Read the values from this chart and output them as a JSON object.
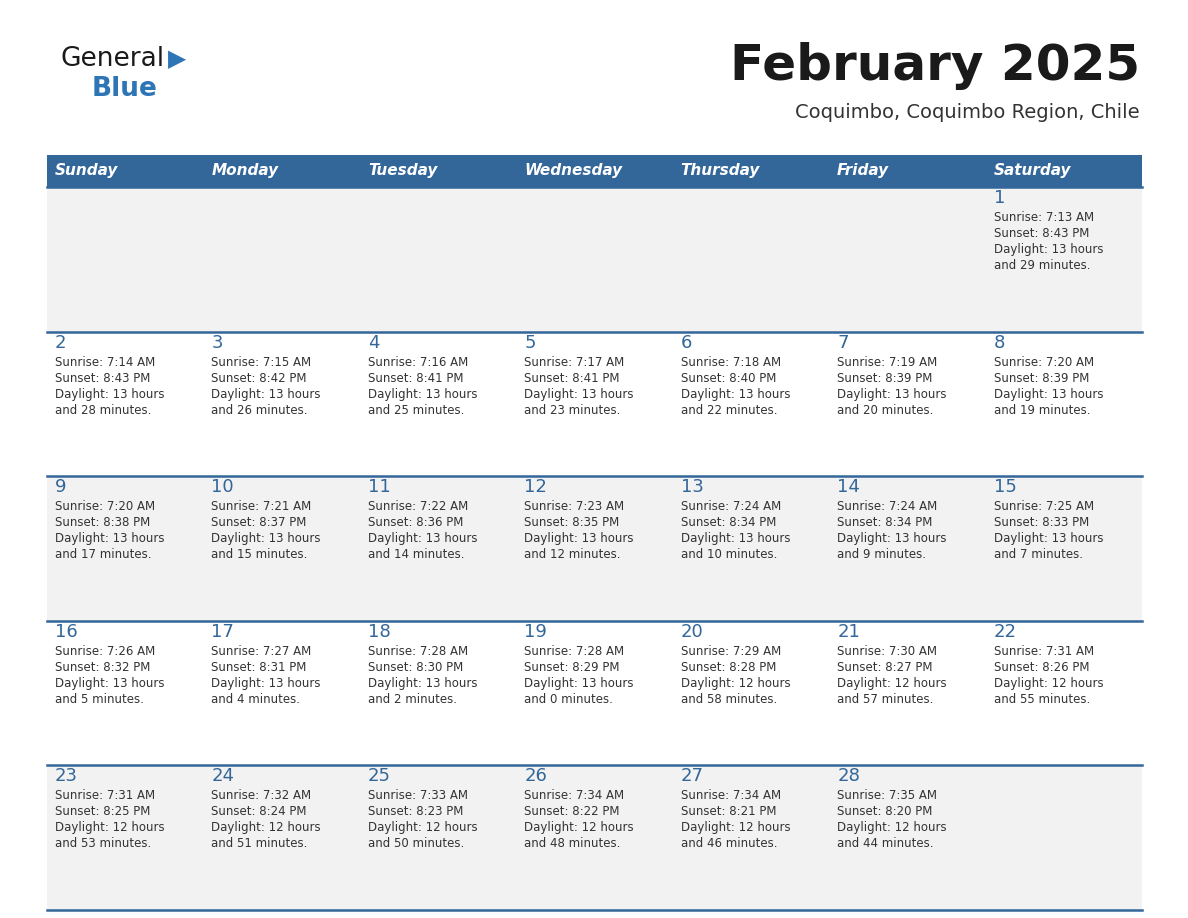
{
  "title": "February 2025",
  "subtitle": "Coquimbo, Coquimbo Region, Chile",
  "header_bg": "#336699",
  "header_text_color": "#FFFFFF",
  "cell_bg_odd": "#F2F2F2",
  "cell_bg_even": "#FFFFFF",
  "day_number_color": "#336699",
  "text_color": "#333333",
  "line_color": "#336699",
  "days_of_week": [
    "Sunday",
    "Monday",
    "Tuesday",
    "Wednesday",
    "Thursday",
    "Friday",
    "Saturday"
  ],
  "weeks": [
    [
      {
        "day": null,
        "sunrise": null,
        "sunset": null,
        "daylight_line1": null,
        "daylight_line2": null
      },
      {
        "day": null,
        "sunrise": null,
        "sunset": null,
        "daylight_line1": null,
        "daylight_line2": null
      },
      {
        "day": null,
        "sunrise": null,
        "sunset": null,
        "daylight_line1": null,
        "daylight_line2": null
      },
      {
        "day": null,
        "sunrise": null,
        "sunset": null,
        "daylight_line1": null,
        "daylight_line2": null
      },
      {
        "day": null,
        "sunrise": null,
        "sunset": null,
        "daylight_line1": null,
        "daylight_line2": null
      },
      {
        "day": null,
        "sunrise": null,
        "sunset": null,
        "daylight_line1": null,
        "daylight_line2": null
      },
      {
        "day": "1",
        "sunrise": "Sunrise: 7:13 AM",
        "sunset": "Sunset: 8:43 PM",
        "daylight_line1": "Daylight: 13 hours",
        "daylight_line2": "and 29 minutes."
      }
    ],
    [
      {
        "day": "2",
        "sunrise": "Sunrise: 7:14 AM",
        "sunset": "Sunset: 8:43 PM",
        "daylight_line1": "Daylight: 13 hours",
        "daylight_line2": "and 28 minutes."
      },
      {
        "day": "3",
        "sunrise": "Sunrise: 7:15 AM",
        "sunset": "Sunset: 8:42 PM",
        "daylight_line1": "Daylight: 13 hours",
        "daylight_line2": "and 26 minutes."
      },
      {
        "day": "4",
        "sunrise": "Sunrise: 7:16 AM",
        "sunset": "Sunset: 8:41 PM",
        "daylight_line1": "Daylight: 13 hours",
        "daylight_line2": "and 25 minutes."
      },
      {
        "day": "5",
        "sunrise": "Sunrise: 7:17 AM",
        "sunset": "Sunset: 8:41 PM",
        "daylight_line1": "Daylight: 13 hours",
        "daylight_line2": "and 23 minutes."
      },
      {
        "day": "6",
        "sunrise": "Sunrise: 7:18 AM",
        "sunset": "Sunset: 8:40 PM",
        "daylight_line1": "Daylight: 13 hours",
        "daylight_line2": "and 22 minutes."
      },
      {
        "day": "7",
        "sunrise": "Sunrise: 7:19 AM",
        "sunset": "Sunset: 8:39 PM",
        "daylight_line1": "Daylight: 13 hours",
        "daylight_line2": "and 20 minutes."
      },
      {
        "day": "8",
        "sunrise": "Sunrise: 7:20 AM",
        "sunset": "Sunset: 8:39 PM",
        "daylight_line1": "Daylight: 13 hours",
        "daylight_line2": "and 19 minutes."
      }
    ],
    [
      {
        "day": "9",
        "sunrise": "Sunrise: 7:20 AM",
        "sunset": "Sunset: 8:38 PM",
        "daylight_line1": "Daylight: 13 hours",
        "daylight_line2": "and 17 minutes."
      },
      {
        "day": "10",
        "sunrise": "Sunrise: 7:21 AM",
        "sunset": "Sunset: 8:37 PM",
        "daylight_line1": "Daylight: 13 hours",
        "daylight_line2": "and 15 minutes."
      },
      {
        "day": "11",
        "sunrise": "Sunrise: 7:22 AM",
        "sunset": "Sunset: 8:36 PM",
        "daylight_line1": "Daylight: 13 hours",
        "daylight_line2": "and 14 minutes."
      },
      {
        "day": "12",
        "sunrise": "Sunrise: 7:23 AM",
        "sunset": "Sunset: 8:35 PM",
        "daylight_line1": "Daylight: 13 hours",
        "daylight_line2": "and 12 minutes."
      },
      {
        "day": "13",
        "sunrise": "Sunrise: 7:24 AM",
        "sunset": "Sunset: 8:34 PM",
        "daylight_line1": "Daylight: 13 hours",
        "daylight_line2": "and 10 minutes."
      },
      {
        "day": "14",
        "sunrise": "Sunrise: 7:24 AM",
        "sunset": "Sunset: 8:34 PM",
        "daylight_line1": "Daylight: 13 hours",
        "daylight_line2": "and 9 minutes."
      },
      {
        "day": "15",
        "sunrise": "Sunrise: 7:25 AM",
        "sunset": "Sunset: 8:33 PM",
        "daylight_line1": "Daylight: 13 hours",
        "daylight_line2": "and 7 minutes."
      }
    ],
    [
      {
        "day": "16",
        "sunrise": "Sunrise: 7:26 AM",
        "sunset": "Sunset: 8:32 PM",
        "daylight_line1": "Daylight: 13 hours",
        "daylight_line2": "and 5 minutes."
      },
      {
        "day": "17",
        "sunrise": "Sunrise: 7:27 AM",
        "sunset": "Sunset: 8:31 PM",
        "daylight_line1": "Daylight: 13 hours",
        "daylight_line2": "and 4 minutes."
      },
      {
        "day": "18",
        "sunrise": "Sunrise: 7:28 AM",
        "sunset": "Sunset: 8:30 PM",
        "daylight_line1": "Daylight: 13 hours",
        "daylight_line2": "and 2 minutes."
      },
      {
        "day": "19",
        "sunrise": "Sunrise: 7:28 AM",
        "sunset": "Sunset: 8:29 PM",
        "daylight_line1": "Daylight: 13 hours",
        "daylight_line2": "and 0 minutes."
      },
      {
        "day": "20",
        "sunrise": "Sunrise: 7:29 AM",
        "sunset": "Sunset: 8:28 PM",
        "daylight_line1": "Daylight: 12 hours",
        "daylight_line2": "and 58 minutes."
      },
      {
        "day": "21",
        "sunrise": "Sunrise: 7:30 AM",
        "sunset": "Sunset: 8:27 PM",
        "daylight_line1": "Daylight: 12 hours",
        "daylight_line2": "and 57 minutes."
      },
      {
        "day": "22",
        "sunrise": "Sunrise: 7:31 AM",
        "sunset": "Sunset: 8:26 PM",
        "daylight_line1": "Daylight: 12 hours",
        "daylight_line2": "and 55 minutes."
      }
    ],
    [
      {
        "day": "23",
        "sunrise": "Sunrise: 7:31 AM",
        "sunset": "Sunset: 8:25 PM",
        "daylight_line1": "Daylight: 12 hours",
        "daylight_line2": "and 53 minutes."
      },
      {
        "day": "24",
        "sunrise": "Sunrise: 7:32 AM",
        "sunset": "Sunset: 8:24 PM",
        "daylight_line1": "Daylight: 12 hours",
        "daylight_line2": "and 51 minutes."
      },
      {
        "day": "25",
        "sunrise": "Sunrise: 7:33 AM",
        "sunset": "Sunset: 8:23 PM",
        "daylight_line1": "Daylight: 12 hours",
        "daylight_line2": "and 50 minutes."
      },
      {
        "day": "26",
        "sunrise": "Sunrise: 7:34 AM",
        "sunset": "Sunset: 8:22 PM",
        "daylight_line1": "Daylight: 12 hours",
        "daylight_line2": "and 48 minutes."
      },
      {
        "day": "27",
        "sunrise": "Sunrise: 7:34 AM",
        "sunset": "Sunset: 8:21 PM",
        "daylight_line1": "Daylight: 12 hours",
        "daylight_line2": "and 46 minutes."
      },
      {
        "day": "28",
        "sunrise": "Sunrise: 7:35 AM",
        "sunset": "Sunset: 8:20 PM",
        "daylight_line1": "Daylight: 12 hours",
        "daylight_line2": "and 44 minutes."
      },
      {
        "day": null,
        "sunrise": null,
        "sunset": null,
        "daylight_line1": null,
        "daylight_line2": null
      }
    ]
  ]
}
